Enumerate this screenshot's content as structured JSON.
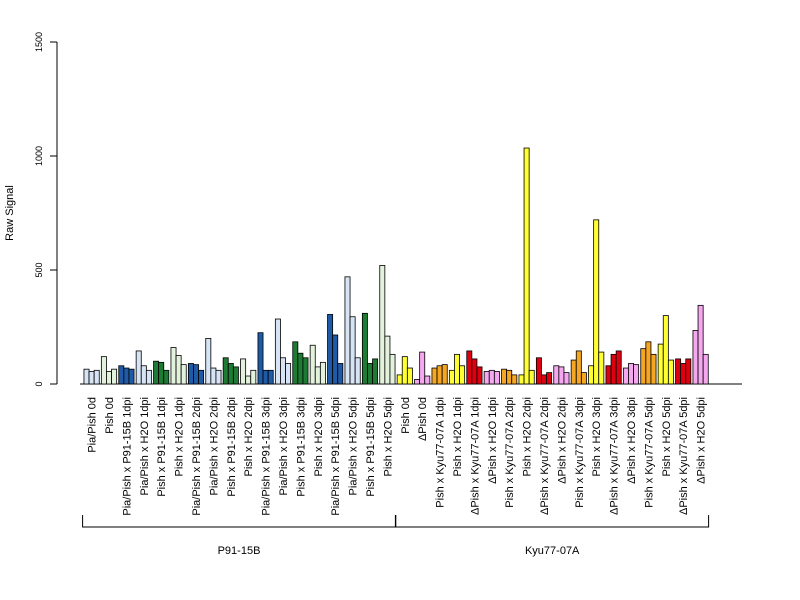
{
  "chart_data": {
    "type": "bar",
    "title": "",
    "xlabel": "",
    "ylabel": "Raw Signal",
    "ylim": [
      0,
      1500
    ],
    "yticks": [
      0,
      500,
      1000,
      1500
    ],
    "grid": false,
    "legend": "none",
    "categories": [
      "Pia/Pish 0d",
      "Pish 0d",
      "Pia/Pish x P91-15B 1dpi",
      "Pia/Pish x H2O 1dpi",
      "Pish x P91-15B 1dpi",
      "Pish x H2O 1dpi",
      "Pia/Pish x P91-15B 2dpi",
      "Pia/Pish x H2O 2dpi",
      "Pish x P91-15B 2dpi",
      "Pish x H2O 2dpi",
      "Pia/Pish x P91-15B 3dpi",
      "Pia/Pish x H2O 3dpi",
      "Pish x P91-15B 3dpi",
      "Pish x H2O 3dpi",
      "Pia/Pish x P91-15B 5dpi",
      "Pia/Pish x H2O 5dpi",
      "Pish x P91-15B 5dpi",
      "Pish x H2O 5dpi",
      "Pish 0d",
      "ΔPish 0d",
      "Pish x Kyu77-07A 1dpi",
      "Pish x H2O 1dpi",
      "ΔPish x Kyu77-07A 1dpi",
      "ΔPish x H2O 1dpi",
      "Pish x Kyu77-07A 2dpi",
      "Pish x H2O 2dpi",
      "ΔPish x Kyu77-07A 2dpi",
      "ΔPish x H2O 2dpi",
      "Pish x Kyu77-07A 3dpi",
      "Pish x H2O 3dpi",
      "ΔPish x Kyu77-07A 3dpi",
      "ΔPish x H2O 3dpi",
      "Pish x Kyu77-07A 5dpi",
      "Pish x H2O 5dpi",
      "ΔPish x Kyu77-07A 5dpi",
      "ΔPish x H2O 5dpi"
    ],
    "colors": [
      "#d6e4f5",
      "#e3f2dc",
      "#1f5aa6",
      "#d6e4f5",
      "#1e7b34",
      "#e3f2dc",
      "#1f5aa6",
      "#d6e4f5",
      "#1e7b34",
      "#e3f2dc",
      "#1f5aa6",
      "#d6e4f5",
      "#1e7b34",
      "#e3f2dc",
      "#1f5aa6",
      "#d6e4f5",
      "#1e7b34",
      "#e3f2dc",
      "#ffff33",
      "#f5a8f0",
      "#f5a623",
      "#ffff33",
      "#dd0011",
      "#f5a8f0",
      "#f5a623",
      "#ffff33",
      "#dd0011",
      "#f5a8f0",
      "#f5a623",
      "#ffff33",
      "#dd0011",
      "#f5a8f0",
      "#f5a623",
      "#ffff33",
      "#dd0011",
      "#f5a8f0"
    ],
    "values": [
      [
        65,
        55,
        60
      ],
      [
        120,
        55,
        65
      ],
      [
        80,
        70,
        65
      ],
      [
        145,
        80,
        60
      ],
      [
        100,
        95,
        60
      ],
      [
        160,
        125,
        85
      ],
      [
        90,
        85,
        60
      ],
      [
        200,
        70,
        60
      ],
      [
        115,
        90,
        75
      ],
      [
        110,
        35,
        60
      ],
      [
        225,
        60,
        60
      ],
      [
        285,
        115,
        90
      ],
      [
        185,
        135,
        115
      ],
      [
        170,
        75,
        95
      ],
      [
        305,
        215,
        90
      ],
      [
        470,
        295,
        115
      ],
      [
        310,
        90,
        110
      ],
      [
        520,
        210,
        130
      ],
      [
        40,
        120,
        70
      ],
      [
        20,
        140,
        35
      ],
      [
        70,
        80,
        85
      ],
      [
        60,
        130,
        80
      ],
      [
        145,
        110,
        75
      ],
      [
        55,
        60,
        55
      ],
      [
        65,
        60,
        40
      ],
      [
        40,
        1035,
        60
      ],
      [
        115,
        40,
        50
      ],
      [
        80,
        75,
        50
      ],
      [
        105,
        145,
        50
      ],
      [
        80,
        720,
        140
      ],
      [
        80,
        130,
        145
      ],
      [
        70,
        90,
        85
      ],
      [
        155,
        185,
        130
      ],
      [
        175,
        300,
        105
      ],
      [
        110,
        90,
        110
      ],
      [
        235,
        345,
        130
      ]
    ],
    "groups": [
      {
        "name": "P91-15B",
        "from": 0,
        "to": 17
      },
      {
        "name": "Kyu77-07A",
        "from": 18,
        "to": 35
      }
    ]
  }
}
